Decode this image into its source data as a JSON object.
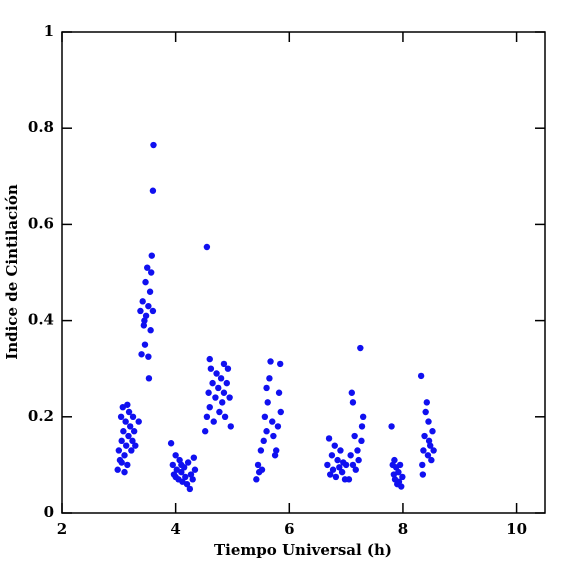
{
  "chart_data": {
    "type": "scatter",
    "xlabel": "Tiempo Universal (h)",
    "ylabel": "Indice de Cintilación",
    "xlim": [
      2,
      10.5
    ],
    "xticks": [
      2,
      4,
      6,
      8,
      10
    ],
    "ylim": [
      0,
      1
    ],
    "yticks": [
      0,
      0.2,
      0.4,
      0.6,
      0.8,
      1
    ],
    "color": "#1010f0",
    "x": [
      2.98,
      3.0,
      3.02,
      3.04,
      3.05,
      3.07,
      3.08,
      3.1,
      3.12,
      3.13,
      3.15,
      3.17,
      3.18,
      3.2,
      3.22,
      3.24,
      3.25,
      3.27,
      3.29,
      3.1,
      3.15,
      3.05,
      3.35,
      3.38,
      3.4,
      3.42,
      3.44,
      3.46,
      3.47,
      3.48,
      3.5,
      3.52,
      3.53,
      3.55,
      3.56,
      3.57,
      3.58,
      3.6,
      3.61,
      3.6,
      3.45,
      3.52,
      3.92,
      3.95,
      3.97,
      4.0,
      4.02,
      4.05,
      4.07,
      4.1,
      4.12,
      4.15,
      4.17,
      4.2,
      4.22,
      4.25,
      4.27,
      4.3,
      4.32,
      4.34,
      4.0,
      4.1,
      4.55,
      4.52,
      4.55,
      4.58,
      4.6,
      4.62,
      4.65,
      4.67,
      4.7,
      4.72,
      4.75,
      4.77,
      4.8,
      4.82,
      4.85,
      4.87,
      4.9,
      4.92,
      4.95,
      4.97,
      4.6,
      4.85,
      5.42,
      5.45,
      5.47,
      5.5,
      5.52,
      5.55,
      5.57,
      5.6,
      5.62,
      5.65,
      5.67,
      5.7,
      5.72,
      5.77,
      5.8,
      5.82,
      5.84,
      5.85,
      5.75,
      5.6,
      6.67,
      6.7,
      6.72,
      6.75,
      6.77,
      6.8,
      6.82,
      6.85,
      6.88,
      6.9,
      6.93,
      6.95,
      6.98,
      7.0,
      7.05,
      7.08,
      7.1,
      7.12,
      7.15,
      7.17,
      7.2,
      7.22,
      7.25,
      7.27,
      7.28,
      7.3,
      7.12,
      7.8,
      7.82,
      7.84,
      7.86,
      7.88,
      7.9,
      7.92,
      7.95,
      7.97,
      7.99,
      7.85,
      7.93,
      8.32,
      8.34,
      8.36,
      8.38,
      8.4,
      8.42,
      8.44,
      8.46,
      8.48,
      8.5,
      8.52,
      8.54,
      8.35,
      8.45
    ],
    "y": [
      0.09,
      0.13,
      0.11,
      0.2,
      0.15,
      0.22,
      0.17,
      0.12,
      0.19,
      0.14,
      0.1,
      0.16,
      0.21,
      0.18,
      0.13,
      0.15,
      0.2,
      0.17,
      0.14,
      0.085,
      0.225,
      0.105,
      0.19,
      0.42,
      0.33,
      0.44,
      0.39,
      0.35,
      0.48,
      0.41,
      0.51,
      0.43,
      0.28,
      0.46,
      0.38,
      0.5,
      0.535,
      0.42,
      0.765,
      0.67,
      0.4,
      0.325,
      0.145,
      0.1,
      0.08,
      0.12,
      0.09,
      0.07,
      0.11,
      0.085,
      0.065,
      0.095,
      0.075,
      0.06,
      0.105,
      0.05,
      0.08,
      0.07,
      0.115,
      0.09,
      0.075,
      0.1,
      0.553,
      0.17,
      0.2,
      0.25,
      0.22,
      0.3,
      0.27,
      0.19,
      0.24,
      0.29,
      0.26,
      0.21,
      0.28,
      0.23,
      0.25,
      0.2,
      0.27,
      0.3,
      0.24,
      0.18,
      0.32,
      0.31,
      0.07,
      0.1,
      0.085,
      0.13,
      0.09,
      0.15,
      0.2,
      0.17,
      0.23,
      0.28,
      0.315,
      0.19,
      0.16,
      0.13,
      0.18,
      0.25,
      0.31,
      0.21,
      0.12,
      0.26,
      0.1,
      0.155,
      0.08,
      0.12,
      0.09,
      0.14,
      0.075,
      0.11,
      0.095,
      0.13,
      0.085,
      0.105,
      0.07,
      0.1,
      0.07,
      0.12,
      0.25,
      0.1,
      0.16,
      0.09,
      0.13,
      0.11,
      0.343,
      0.15,
      0.18,
      0.2,
      0.23,
      0.18,
      0.1,
      0.08,
      0.07,
      0.095,
      0.06,
      0.085,
      0.1,
      0.055,
      0.075,
      0.11,
      0.065,
      0.285,
      0.1,
      0.13,
      0.16,
      0.21,
      0.23,
      0.12,
      0.15,
      0.14,
      0.11,
      0.17,
      0.13,
      0.08,
      0.19
    ]
  }
}
